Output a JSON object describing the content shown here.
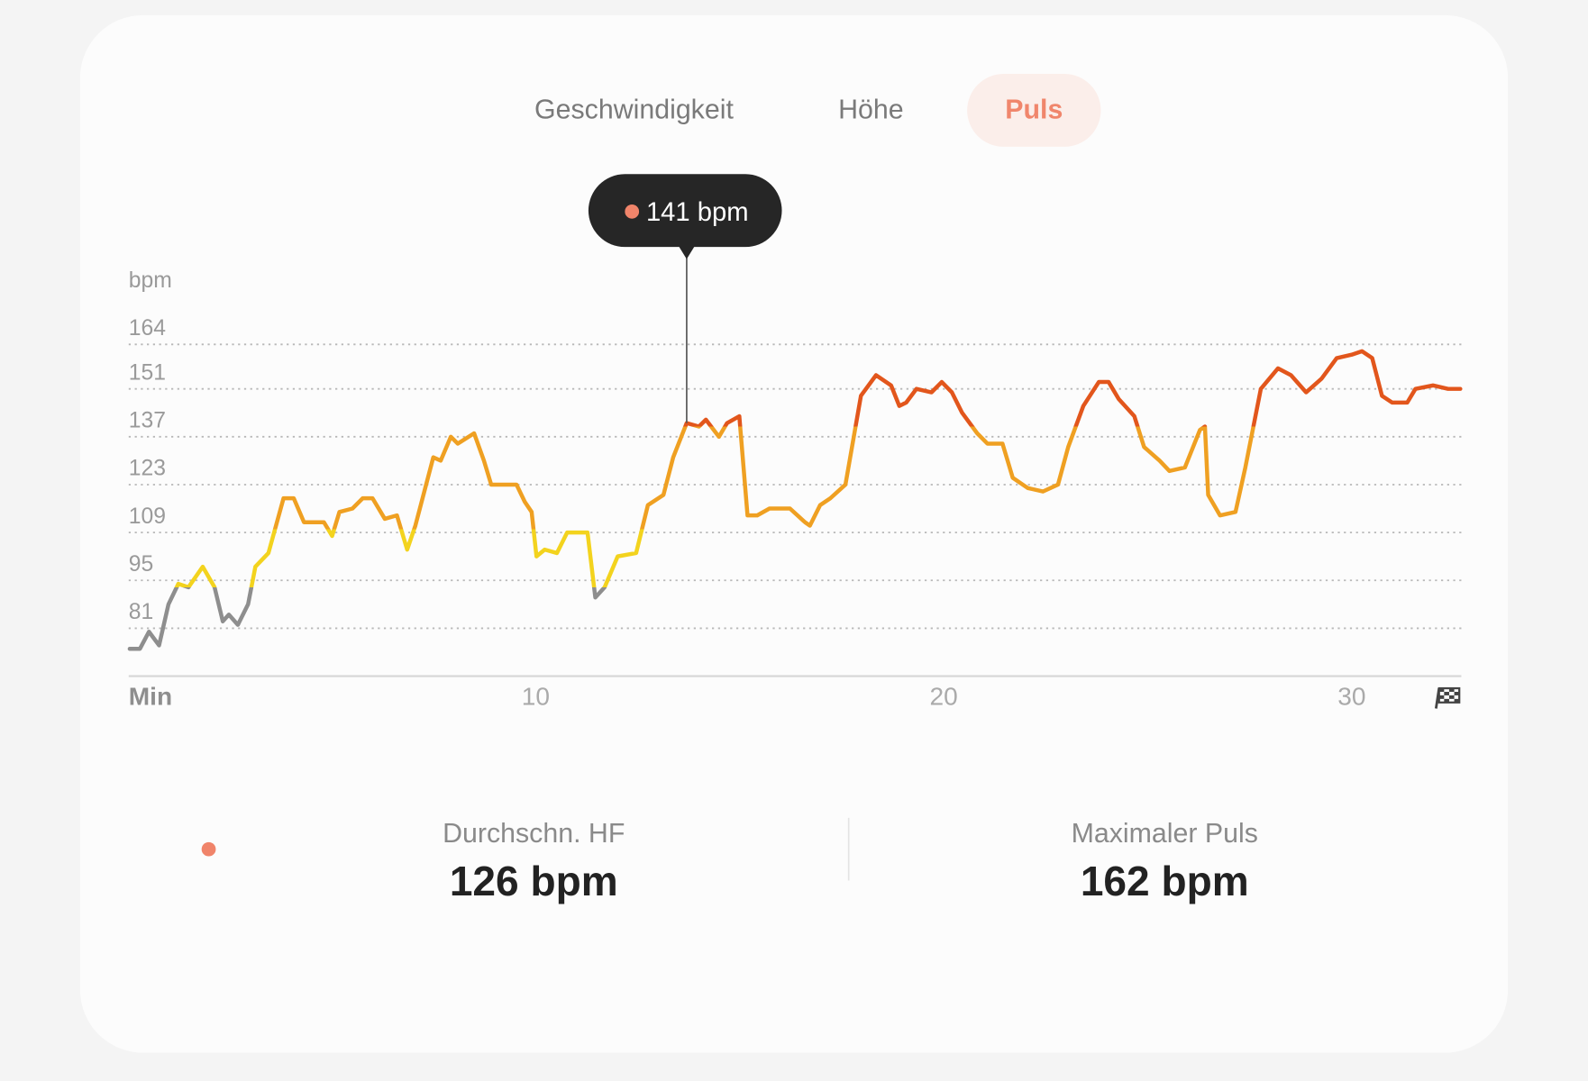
{
  "tabs": [
    "Geschwindigkeit",
    "Höhe",
    "Puls"
  ],
  "active_tab": 2,
  "chart_data": {
    "type": "line",
    "y_label": "bpm",
    "x": [
      0.05,
      0.3,
      0.52,
      0.77,
      1.0,
      1.24,
      1.49,
      1.84,
      2.13,
      2.33,
      2.48,
      2.7,
      2.95,
      3.13,
      3.45,
      3.82,
      4.07,
      4.32,
      4.81,
      5.01,
      5.19,
      5.51,
      5.76,
      6.0,
      6.3,
      6.6,
      6.85,
      7.05,
      7.49,
      7.67,
      7.92,
      8.09,
      8.49,
      8.73,
      8.91,
      9.28,
      9.53,
      9.73,
      9.9,
      10.02,
      10.22,
      10.52,
      10.77,
      11.27,
      11.46,
      11.69,
      12.01,
      12.46,
      12.75,
      13.13,
      13.37,
      13.7,
      14.0,
      14.17,
      14.49,
      14.69,
      14.99,
      15.19,
      15.43,
      15.73,
      16.23,
      16.6,
      16.72,
      16.97,
      17.22,
      17.59,
      17.97,
      18.34,
      18.71,
      18.91,
      19.08,
      19.33,
      19.7,
      19.95,
      20.2,
      20.45,
      20.82,
      21.07,
      21.44,
      21.69,
      22.06,
      22.43,
      22.8,
      23.05,
      23.42,
      23.8,
      24.04,
      24.29,
      24.67,
      24.91,
      25.29,
      25.53,
      25.91,
      26.28,
      26.4,
      26.48,
      26.77,
      27.15,
      27.39,
      27.77,
      28.19,
      28.51,
      28.88,
      29.26,
      29.63,
      30.0,
      30.25,
      30.5,
      30.74,
      30.99,
      31.36,
      31.56,
      31.99,
      32.36,
      32.66
    ],
    "values": [
      75,
      75,
      80,
      76,
      88,
      94,
      93,
      99,
      93,
      83,
      85,
      82,
      88,
      99,
      103,
      119,
      119,
      112,
      112,
      108,
      115,
      116,
      119,
      119,
      113,
      114,
      104,
      111,
      131,
      130,
      137,
      135,
      138,
      130,
      123,
      123,
      123,
      118,
      115,
      102,
      104,
      103,
      109,
      109,
      90,
      93,
      102,
      103,
      117,
      120,
      131,
      141,
      140,
      142,
      137,
      141,
      143,
      114,
      114,
      116,
      116,
      112,
      111,
      117,
      119,
      123,
      149,
      155,
      152,
      146,
      147,
      151,
      150,
      153,
      150,
      144,
      138,
      135,
      135,
      125,
      122,
      121,
      123,
      134,
      146,
      153,
      153,
      148,
      143,
      134,
      130,
      127,
      128,
      139,
      140,
      120,
      114,
      115,
      128,
      151,
      157,
      155,
      150,
      154,
      160,
      161,
      162,
      160,
      149,
      147,
      147,
      151,
      152,
      151,
      151
    ],
    "zone_thresholds": [
      93,
      110,
      140
    ],
    "zone_colors": [
      "#8e8e8e",
      "#f3d31e",
      "#efa022",
      "#e2561c"
    ],
    "xlim": [
      0,
      32.66
    ],
    "xticks": [
      {
        "value": 0,
        "label": "Min"
      },
      10,
      20,
      30
    ],
    "ylim": [
      67,
      170
    ],
    "yticks": [
      81,
      95,
      109,
      123,
      137,
      151,
      164
    ],
    "grid": true,
    "tooltip": {
      "x": 13.7,
      "value": 141,
      "label": "141 bpm"
    }
  },
  "stats": [
    {
      "label": "Durchschn. HF",
      "value": "126 bpm"
    },
    {
      "label": "Maximaler Puls",
      "value": "162 bpm"
    }
  ]
}
